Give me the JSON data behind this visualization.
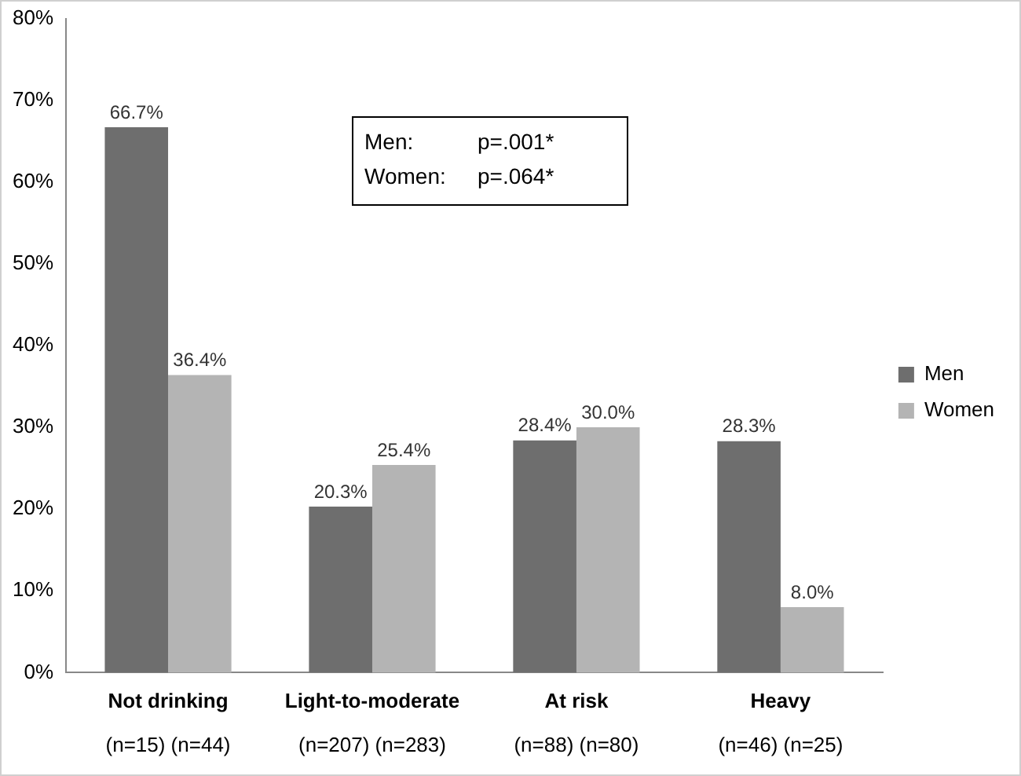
{
  "chart_data": {
    "type": "bar",
    "categories": [
      "Not drinking\n(n=15) (n=44)",
      "Light-to-moderate\n(n=207) (n=283)",
      "At risk\n(n=88) (n=80)",
      "Heavy\n(n=46) (n=25)"
    ],
    "series": [
      {
        "name": "Men",
        "color": "#6e6e6e",
        "values": [
          66.7,
          20.3,
          28.4,
          28.3
        ],
        "value_labels": [
          "66.7%",
          "20.3%",
          "28.4%",
          "28.3%"
        ]
      },
      {
        "name": "Women",
        "color": "#b4b4b4",
        "values": [
          36.4,
          25.4,
          30.0,
          8.0
        ],
        "value_labels": [
          "36.4%",
          "25.4%",
          "30.0%",
          "8.0%"
        ]
      }
    ],
    "ylim": [
      0,
      80
    ],
    "yticks": [
      {
        "value": 0,
        "label": "0%"
      },
      {
        "value": 10,
        "label": "10%"
      },
      {
        "value": 20,
        "label": "20%"
      },
      {
        "value": 30,
        "label": "30%"
      },
      {
        "value": 40,
        "label": "40%"
      },
      {
        "value": 50,
        "label": "50%"
      },
      {
        "value": 60,
        "label": "60%"
      },
      {
        "value": 70,
        "label": "70%"
      },
      {
        "value": 80,
        "label": "80%"
      }
    ],
    "annotations": [
      "Men: p=.001*",
      "Women: p=.064*"
    ],
    "grid": false,
    "legend": "right"
  }
}
